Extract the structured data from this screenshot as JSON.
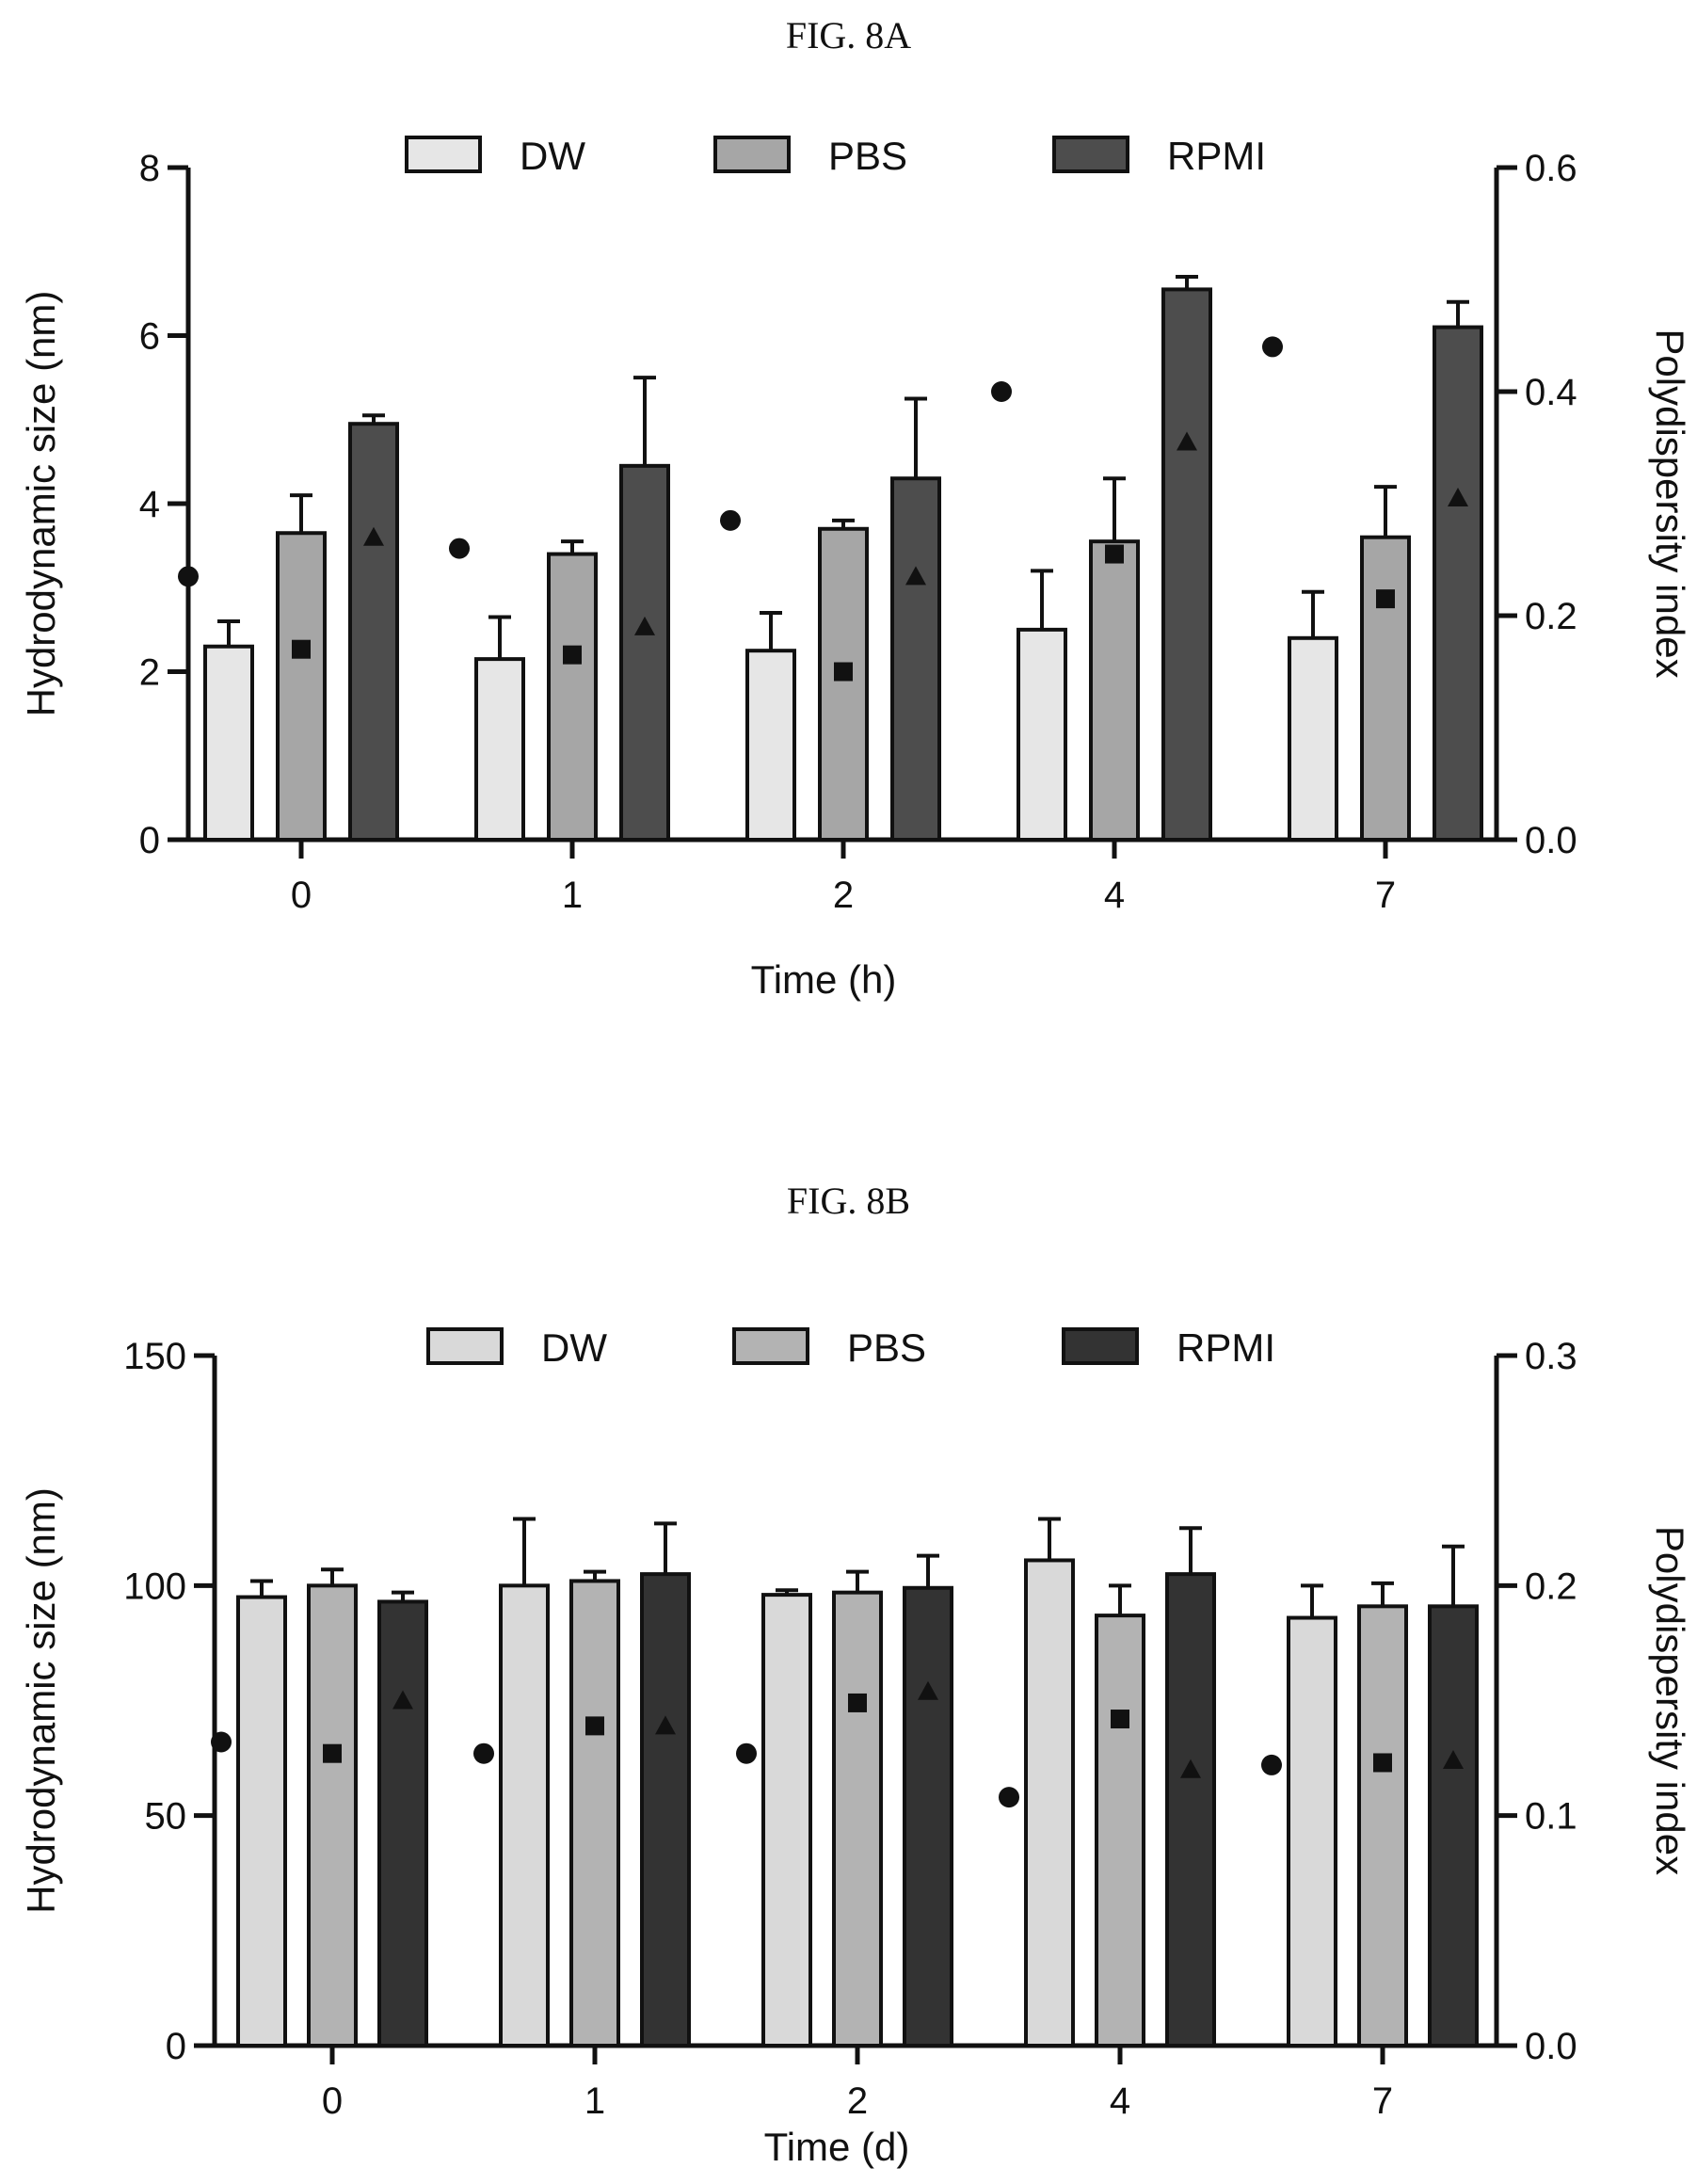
{
  "figures": [
    {
      "id": "A",
      "label": "FIG. 8A"
    },
    {
      "id": "B",
      "label": "FIG. 8B"
    }
  ],
  "chart_data": [
    {
      "type": "bar",
      "title": "FIG. 8A",
      "xlabel": "Time (h)",
      "ylabel": "Hydrodynamic size (nm)",
      "y2label": "Polydispersity index",
      "categories": [
        "0",
        "1",
        "2",
        "4",
        "7"
      ],
      "ylim": [
        0,
        8
      ],
      "yticks": [
        "0",
        "2",
        "4",
        "6",
        "8"
      ],
      "y2lim": [
        0,
        0.6
      ],
      "y2ticks": [
        "0.0",
        "0.2",
        "0.4",
        "0.6"
      ],
      "legend_position": "top",
      "grid": false,
      "series": [
        {
          "name": "DW",
          "color": "#e6e6e6",
          "values": [
            2.3,
            2.15,
            2.25,
            2.5,
            2.4
          ],
          "errors": [
            0.3,
            0.5,
            0.45,
            0.7,
            0.55
          ],
          "pdi": [
            0.235,
            0.26,
            0.285,
            0.4,
            0.44
          ],
          "pdi_marker": "circle"
        },
        {
          "name": "PBS",
          "color": "#a6a6a6",
          "values": [
            3.65,
            3.4,
            3.7,
            3.55,
            3.6
          ],
          "errors": [
            0.45,
            0.15,
            0.1,
            0.75,
            0.6
          ],
          "pdi": [
            0.17,
            0.165,
            0.15,
            0.255,
            0.215
          ],
          "pdi_marker": "square"
        },
        {
          "name": "RPMI",
          "color": "#4d4d4d",
          "values": [
            4.95,
            4.45,
            4.3,
            6.55,
            6.1
          ],
          "errors": [
            0.1,
            1.05,
            0.95,
            0.15,
            0.3
          ],
          "pdi": [
            0.27,
            0.19,
            0.235,
            0.355,
            0.305
          ],
          "pdi_marker": "triangle"
        }
      ]
    },
    {
      "type": "bar",
      "title": "FIG. 8B",
      "xlabel": "Time (d)",
      "ylabel": "Hydrodynamic size (nm)",
      "y2label": "Polydispersity index",
      "categories": [
        "0",
        "1",
        "2",
        "4",
        "7"
      ],
      "ylim": [
        0,
        150
      ],
      "yticks": [
        "0",
        "50",
        "100",
        "150"
      ],
      "y2lim": [
        0,
        0.3
      ],
      "y2ticks": [
        "0.0",
        "0.1",
        "0.2",
        "0.3"
      ],
      "legend_position": "top",
      "grid": false,
      "series": [
        {
          "name": "DW",
          "color": "#d9d9d9",
          "values": [
            97.5,
            100,
            98,
            105.5,
            93
          ],
          "errors": [
            3.5,
            14.5,
            1,
            9,
            7
          ],
          "pdi": [
            0.132,
            0.127,
            0.127,
            0.108,
            0.122
          ],
          "pdi_marker": "circle"
        },
        {
          "name": "PBS",
          "color": "#b3b3b3",
          "values": [
            100,
            101,
            98.5,
            93.5,
            95.5
          ],
          "errors": [
            3.5,
            2,
            4.5,
            6.5,
            5
          ],
          "pdi": [
            0.127,
            0.139,
            0.149,
            0.142,
            0.123
          ],
          "pdi_marker": "square"
        },
        {
          "name": "RPMI",
          "color": "#333333",
          "values": [
            96.5,
            102.5,
            99.5,
            102.5,
            95.5
          ],
          "errors": [
            2,
            11,
            7,
            10,
            13
          ],
          "pdi": [
            0.15,
            0.139,
            0.154,
            0.12,
            0.124
          ],
          "pdi_marker": "triangle"
        }
      ]
    }
  ]
}
